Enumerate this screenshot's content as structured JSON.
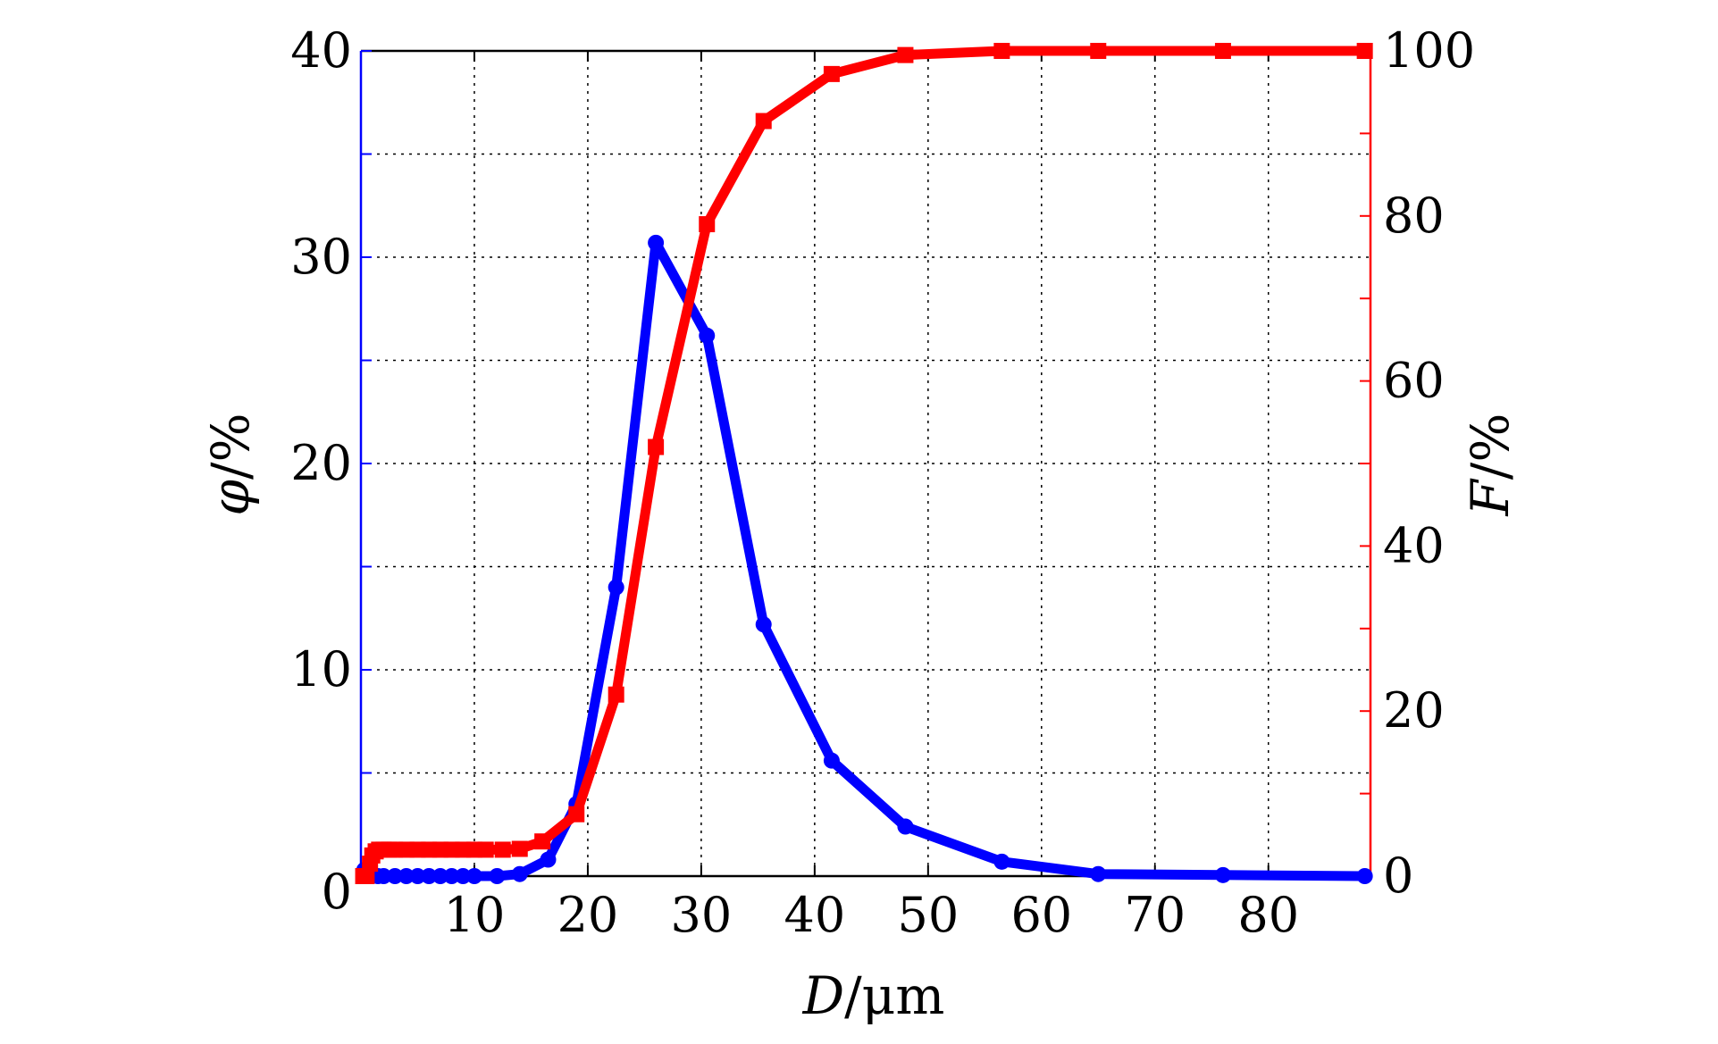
{
  "chart_data": {
    "type": "line",
    "x_axis": {
      "label_var": "D",
      "label_unit": "/μm",
      "range": [
        0,
        89
      ],
      "ticks": [
        10,
        20,
        30,
        40,
        50,
        60,
        70,
        80
      ],
      "tick_labels": [
        "10",
        "20",
        "30",
        "40",
        "50",
        "60",
        "70",
        "80"
      ]
    },
    "y_left": {
      "label_var": "φ",
      "label_unit": "/%",
      "range": [
        0,
        40
      ],
      "ticks": [
        0,
        10,
        20,
        30,
        40
      ],
      "tick_labels": [
        "0",
        "10",
        "20",
        "30",
        "40"
      ],
      "minor_ticks": [
        5,
        15,
        25,
        35
      ],
      "color": "#0000ff"
    },
    "y_right": {
      "label_var": "F",
      "label_unit": "/%",
      "range": [
        0,
        100
      ],
      "ticks": [
        0,
        20,
        40,
        60,
        80,
        100
      ],
      "tick_labels": [
        "0",
        "20",
        "40",
        "60",
        "80",
        "100"
      ],
      "minor_ticks": [
        10,
        30,
        50,
        70,
        90
      ],
      "color": "#ff0000"
    },
    "grid": true,
    "legend": "none",
    "series": [
      {
        "axis": "left",
        "color": "#0000ff",
        "marker": "circle",
        "x": [
          0.3,
          1.5,
          2.0,
          3.0,
          4.0,
          5.0,
          6.0,
          7.0,
          8.0,
          9.0,
          10.0,
          12.0,
          14.0,
          16.5,
          19.0,
          22.5,
          26.0,
          30.5,
          35.5,
          41.5,
          48.0,
          56.5,
          65.0,
          76.0,
          88.5
        ],
        "values": [
          0.3,
          0.0,
          0.0,
          0.0,
          0.0,
          0.0,
          0.0,
          0.0,
          0.0,
          0.0,
          0.0,
          0.0,
          0.1,
          0.8,
          3.5,
          14.0,
          30.7,
          26.2,
          12.2,
          5.6,
          2.4,
          0.7,
          0.1,
          0.05,
          0.0
        ]
      },
      {
        "axis": "right",
        "color": "#ff0000",
        "marker": "square",
        "x": [
          0.2,
          0.5,
          0.8,
          1.0,
          1.3,
          1.6,
          2.0,
          2.5,
          3.0,
          4.0,
          5.0,
          6.0,
          7.0,
          8.0,
          9.0,
          10.0,
          11.0,
          12.5,
          14.0,
          16.0,
          19.0,
          22.5,
          26.0,
          30.5,
          35.5,
          41.5,
          48.0,
          56.5,
          65.0,
          76.0,
          88.5
        ],
        "values": [
          0.0,
          0.0,
          1.5,
          2.5,
          3.0,
          3.2,
          3.2,
          3.2,
          3.2,
          3.2,
          3.2,
          3.2,
          3.2,
          3.2,
          3.2,
          3.2,
          3.2,
          3.2,
          3.3,
          4.2,
          7.5,
          22.0,
          52.0,
          79.0,
          91.5,
          97.2,
          99.5,
          100.0,
          100.0,
          100.0,
          100.0
        ]
      }
    ]
  }
}
